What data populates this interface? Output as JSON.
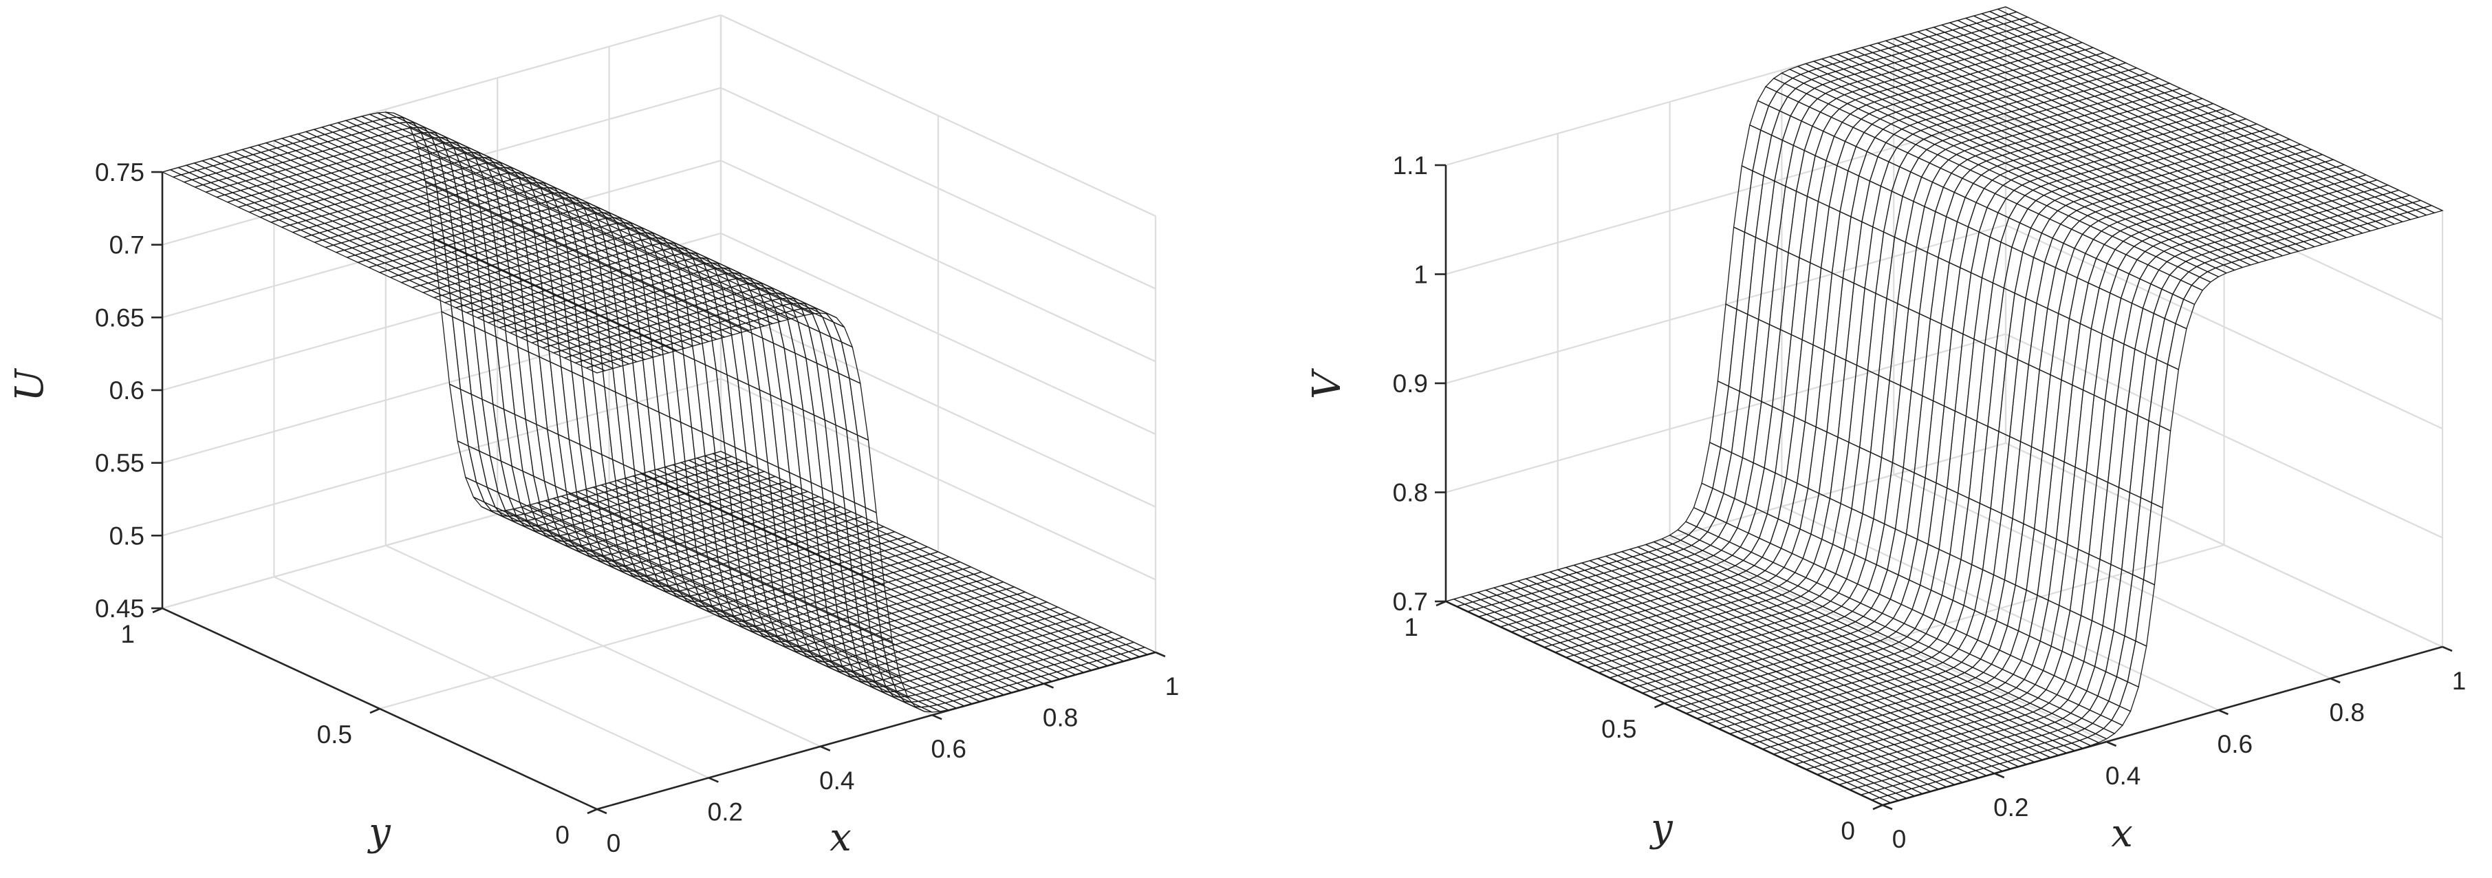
{
  "chart_data": [
    {
      "type": "surface",
      "title": "",
      "xlabel": "x",
      "ylabel": "y",
      "zlabel": "U",
      "xlim": [
        0,
        1
      ],
      "ylim": [
        0,
        1
      ],
      "zlim": [
        0.45,
        0.75
      ],
      "xticks": [
        "0",
        "0.2",
        "0.4",
        "0.6",
        "0.8",
        "1"
      ],
      "yticks": [
        "0",
        "0.5",
        "1"
      ],
      "zticks": [
        "0.45",
        "0.5",
        "0.55",
        "0.6",
        "0.65",
        "0.7",
        "0.75"
      ],
      "z_low": 0.45,
      "z_high": 0.75,
      "transition_x": 0.5,
      "transition_width": 0.04,
      "low_color": "#5bc8d6",
      "high_color": "#c2477f",
      "description_values": {
        "x_lt_0.5": 0.75,
        "x_gt_0.5": 0.45
      }
    },
    {
      "type": "surface",
      "title": "",
      "xlabel": "x",
      "ylabel": "y",
      "zlabel": "V",
      "xlim": [
        0,
        1
      ],
      "ylim": [
        0,
        1
      ],
      "zlim": [
        0.7,
        1.1
      ],
      "xticks": [
        "0",
        "0.2",
        "0.4",
        "0.6",
        "0.8",
        "1"
      ],
      "yticks": [
        "0",
        "0.5",
        "1"
      ],
      "zticks": [
        "0.7",
        "0.8",
        "0.9",
        "1",
        "1.1"
      ],
      "z_low": 0.7,
      "z_high": 1.1,
      "transition_x": 0.5,
      "transition_width": 0.04,
      "low_color": "#5bc8d6",
      "high_color": "#c2477f",
      "description_values": {
        "x_lt_0.5": 0.7,
        "x_gt_0.5": 1.1
      }
    }
  ]
}
